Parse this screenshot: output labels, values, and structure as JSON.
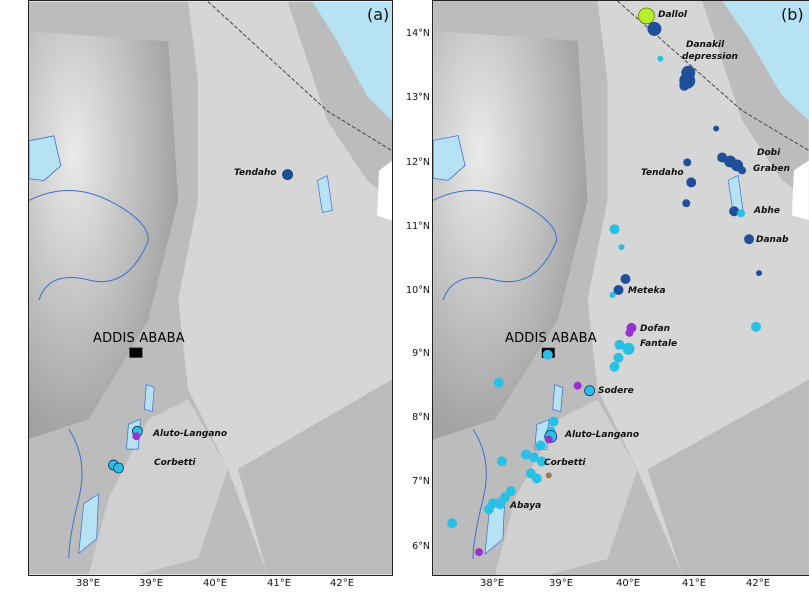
{
  "panels": [
    {
      "label": "(a)"
    },
    {
      "label": "(b)"
    }
  ],
  "capital": "ADDIS ABABA",
  "lat_ticks": [
    "14°N",
    "13°N",
    "12°N",
    "11°N",
    "10°N",
    "9°N",
    "8°N",
    "7°N",
    "6°N"
  ],
  "lon_ticks_a": [
    "38°E",
    "39°E",
    "40°E",
    "41°E",
    "42°E"
  ],
  "lon_ticks_b": [
    "38°E",
    "39°E",
    "40°E",
    "41°E",
    "42°E"
  ],
  "places_a": {
    "tendaho": "Tendaho",
    "aluto": "Aluto-Langano",
    "corbetti": "Corbetti"
  },
  "places_b": {
    "dallol": "Dallol",
    "danakil1": "Danakil",
    "danakil2": "depression",
    "dobi1": "Dobi",
    "dobi2": "Graben",
    "tendaho": "Tendaho",
    "abhe": "Abhe",
    "danab": "Danab",
    "meteka": "Meteka",
    "dofan": "Dofan",
    "fantale": "Fantale",
    "sodere": "Sodere",
    "aluto": "Aluto-Langano",
    "corbetti": "Corbetti",
    "abaya": "Abaya"
  },
  "colors": {
    "sea": "#b6e2f3",
    "highland": "#bdbdbd",
    "lowland": "#e3e3e3",
    "dark_blue": "#1f4e9a",
    "cyan": "#29c0e6",
    "purple": "#9b30d0",
    "lime": "#b6f02a",
    "brown": "#9a7b4f"
  }
}
